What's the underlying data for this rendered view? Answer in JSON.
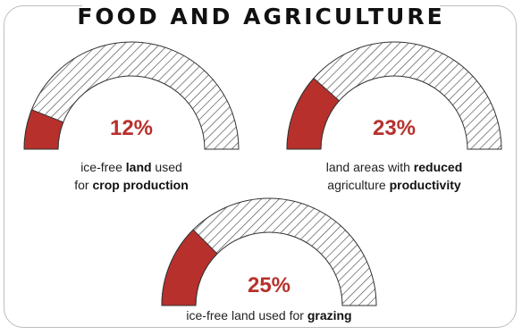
{
  "title": "FOOD AND AGRICULTURE",
  "colors": {
    "filled": "#b7302c",
    "hatch": "#4a4a4a",
    "outline": "#333333",
    "text": "#222222",
    "percent": "#b7302c"
  },
  "chart_data": {
    "type": "gauge",
    "title": "FOOD AND AGRICULTURE",
    "gauges": [
      {
        "value": 12,
        "max": 100,
        "value_label": "12%",
        "caption_line1_a": "ice-free ",
        "caption_line1_b": "land",
        "caption_line1_c": " used",
        "caption_line2_a": "for ",
        "caption_line2_b": "crop production"
      },
      {
        "value": 23,
        "max": 100,
        "value_label": "23%",
        "caption_line1_a": "land areas with ",
        "caption_line1_b": "reduced",
        "caption_line2_a": "agriculture ",
        "caption_line2_b": "productivity"
      },
      {
        "value": 25,
        "max": 100,
        "value_label": "25%",
        "caption_line1_a": "ice-free land used for ",
        "caption_line1_b": "grazing"
      }
    ]
  }
}
